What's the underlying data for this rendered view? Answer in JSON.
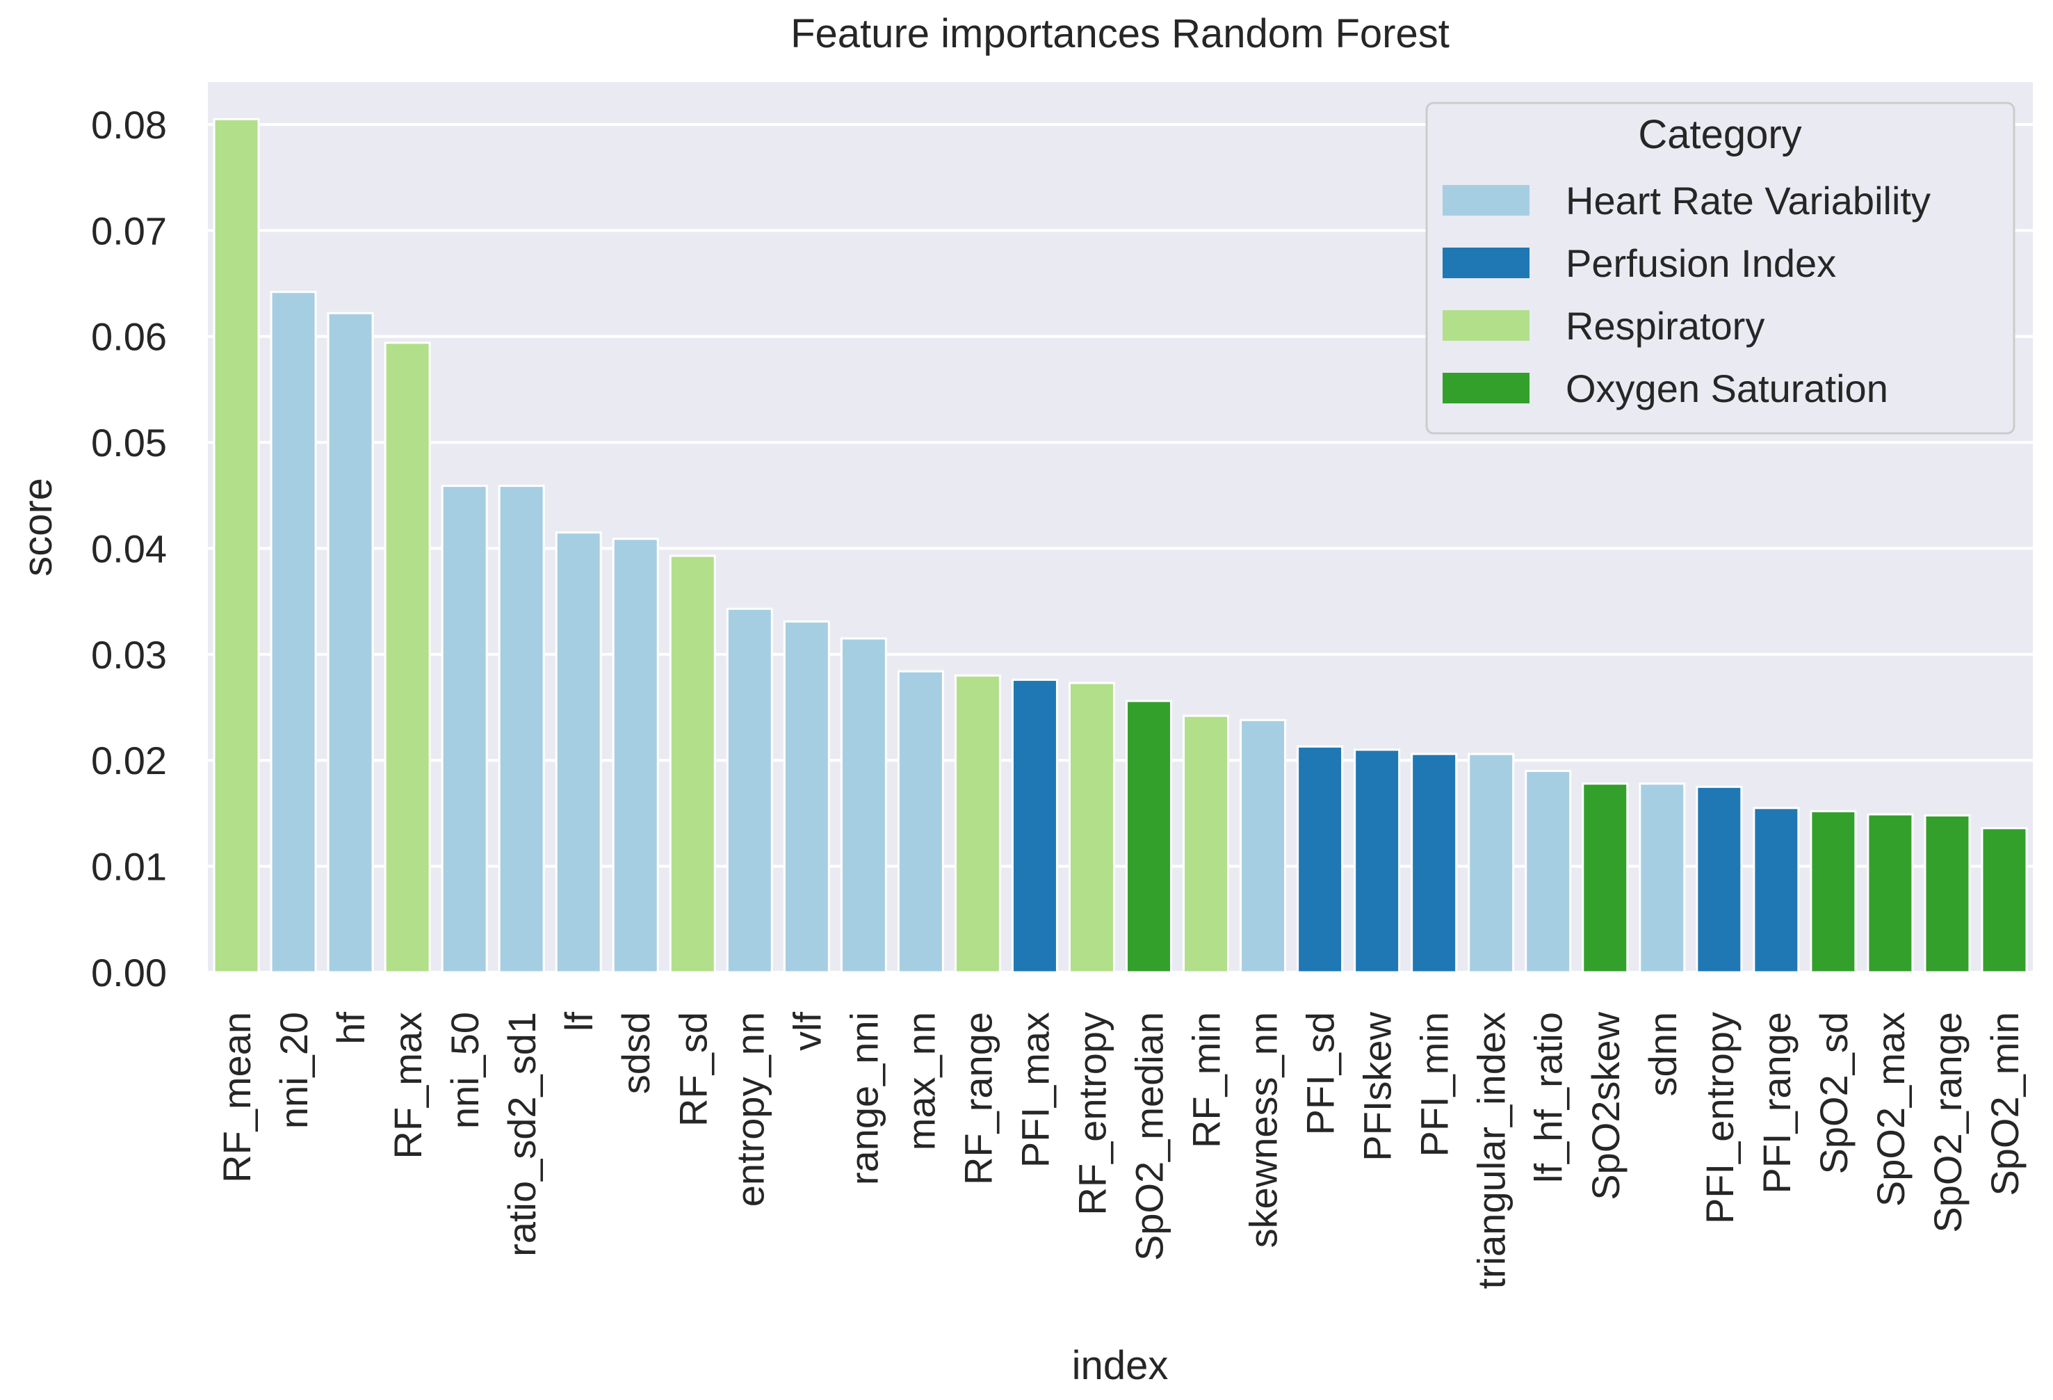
{
  "chart_data": {
    "type": "bar",
    "title": "Feature importances Random Forest",
    "xlabel": "index",
    "ylabel": "score",
    "ylim": [
      0,
      0.084
    ],
    "yticks": [
      "0.00",
      "0.01",
      "0.02",
      "0.03",
      "0.04",
      "0.05",
      "0.06",
      "0.07",
      "0.08"
    ],
    "grid": true,
    "legend": {
      "title": "Category",
      "placement": "top-right",
      "entries": [
        {
          "name": "Heart Rate Variability",
          "color": "#a6cee3"
        },
        {
          "name": "Perfusion Index",
          "color": "#1f78b4"
        },
        {
          "name": "Respiratory",
          "color": "#b2df8a"
        },
        {
          "name": "Oxygen Saturation",
          "color": "#33a02c"
        }
      ]
    },
    "categories": [
      "RF_mean",
      "nni_20",
      "hf",
      "RF_max",
      "nni_50",
      "ratio_sd2_sd1",
      "lf",
      "sdsd",
      "RF_sd",
      "entropy_nn",
      "vlf",
      "range_nni",
      "max_nn",
      "RF_range",
      "PFI_max",
      "RF_entropy",
      "SpO2_median",
      "RF_min",
      "skewness_nn",
      "PFI_sd",
      "PFIskew",
      "PFI_min",
      "triangular_index",
      "lf_hf_ratio",
      "SpO2skew",
      "sdnn",
      "PFI_entropy",
      "PFI_range",
      "SpO2_sd",
      "SpO2_max",
      "SpO2_range",
      "SpO2_min"
    ],
    "values": [
      0.0805,
      0.0642,
      0.0622,
      0.0594,
      0.0459,
      0.0459,
      0.0415,
      0.0409,
      0.0393,
      0.0343,
      0.0331,
      0.0315,
      0.0284,
      0.028,
      0.0276,
      0.0273,
      0.0256,
      0.0242,
      0.0238,
      0.0213,
      0.021,
      0.0206,
      0.0206,
      0.019,
      0.0178,
      0.0178,
      0.0175,
      0.0155,
      0.0152,
      0.0149,
      0.0148,
      0.0136
    ],
    "bar_category": [
      "Respiratory",
      "Heart Rate Variability",
      "Heart Rate Variability",
      "Respiratory",
      "Heart Rate Variability",
      "Heart Rate Variability",
      "Heart Rate Variability",
      "Heart Rate Variability",
      "Respiratory",
      "Heart Rate Variability",
      "Heart Rate Variability",
      "Heart Rate Variability",
      "Heart Rate Variability",
      "Respiratory",
      "Perfusion Index",
      "Respiratory",
      "Oxygen Saturation",
      "Respiratory",
      "Heart Rate Variability",
      "Perfusion Index",
      "Perfusion Index",
      "Perfusion Index",
      "Heart Rate Variability",
      "Heart Rate Variability",
      "Oxygen Saturation",
      "Heart Rate Variability",
      "Perfusion Index",
      "Perfusion Index",
      "Oxygen Saturation",
      "Oxygen Saturation",
      "Oxygen Saturation",
      "Oxygen Saturation"
    ]
  }
}
